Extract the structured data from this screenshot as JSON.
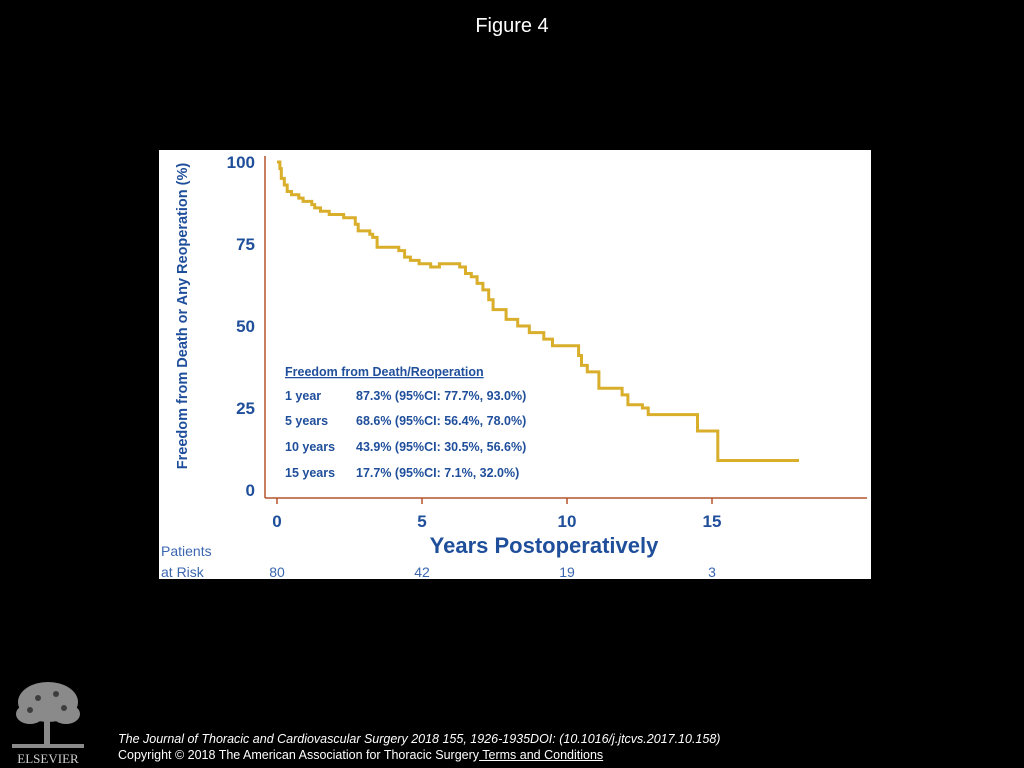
{
  "slide": {
    "title": "Figure 4"
  },
  "chart_data": {
    "type": "line",
    "subtype": "kaplan-meier step",
    "xlabel": "Years Postoperatively",
    "ylabel": "Freedom from Death or Any Reoperation (%)",
    "xlim": [
      0,
      20
    ],
    "ylim": [
      0,
      100
    ],
    "x_ticks": [
      0,
      5,
      10,
      15
    ],
    "y_ticks": [
      0,
      25,
      50,
      75,
      100
    ],
    "grid": false,
    "series": [
      {
        "color": "#D9AE2B",
        "x": [
          0,
          0.1,
          0.15,
          0.25,
          0.35,
          0.5,
          0.75,
          0.9,
          1.2,
          1.3,
          1.5,
          1.8,
          2.0,
          2.3,
          2.7,
          2.8,
          2.9,
          3.2,
          3.3,
          3.45,
          3.7,
          4.2,
          4.4,
          4.6,
          4.9,
          5.3,
          5.6,
          6.3,
          6.5,
          6.7,
          6.9,
          7.1,
          7.3,
          7.45,
          7.7,
          7.9,
          8.3,
          8.7,
          9.2,
          9.5,
          10.4,
          10.5,
          10.7,
          11.1,
          11.9,
          12.1,
          12.6,
          12.8,
          14.5,
          15.2,
          15.2,
          18.0
        ],
        "y": [
          100,
          98,
          95,
          93,
          91,
          90,
          89,
          88,
          87,
          86,
          85,
          84,
          84,
          83,
          81,
          79,
          79,
          78,
          77,
          74,
          74,
          73,
          71,
          70,
          69,
          68,
          69,
          68,
          66,
          65,
          63,
          61,
          58,
          55,
          55,
          52,
          50,
          48,
          46,
          44,
          41,
          38,
          36,
          31,
          29,
          26,
          25,
          23,
          18,
          18,
          9,
          9
        ]
      }
    ],
    "annotation": {
      "title": "Freedom from Death/Reoperation",
      "rows": [
        {
          "label": "1 year",
          "value": "87.3% (95%CI: 77.7%, 93.0%)"
        },
        {
          "label": "5 years",
          "value": "68.6% (95%CI: 56.4%, 78.0%)"
        },
        {
          "label": "10 years",
          "value": "43.9% (95%CI: 30.5%, 56.6%)"
        },
        {
          "label": "15 years",
          "value": "17.7% (95%CI: 7.1%, 32.0%)"
        }
      ]
    },
    "at_risk": {
      "label_line1": "Patients",
      "label_line2": "at Risk",
      "x": [
        0,
        5,
        10,
        15
      ],
      "counts": [
        "80",
        "42",
        "19",
        "3"
      ]
    },
    "colors": {
      "axis": "#B5532B",
      "text": "#1F4E9B",
      "risk_text": "#3C67B0",
      "curve": "#D9AE2B"
    }
  },
  "footer": {
    "logo_text": "ELSEVIER",
    "citation": "The Journal of Thoracic and Cardiovascular Surgery 2018 155, 1926-1935DOI: (10.1016/j.jtcvs.2017.10.158)",
    "copyright": "Copyright © 2018 The American Association for Thoracic Surgery",
    "terms_link": " Terms and Conditions"
  }
}
